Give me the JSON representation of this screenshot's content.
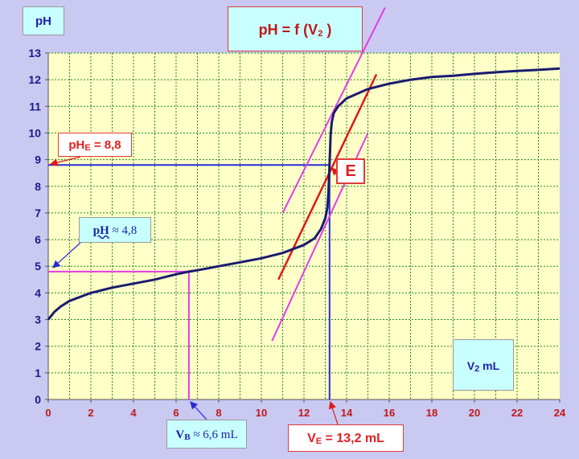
{
  "labels": {
    "y_unit": "pH",
    "title_main": "pH = f (V",
    "title_sub": "2",
    "title_end": " )",
    "phe_main": "pH",
    "phe_sub": "E",
    "phe_val": " = 8,8",
    "e_point": "E",
    "phb_main": "pH",
    "phb_val": " ≈ 4,8",
    "vb_main": "V",
    "vb_sub": "B",
    "vb_val": " ≈ 6,6 mL",
    "ve_main": "V",
    "ve_sub": "E",
    "ve_val": " = 13,2 mL",
    "x_unit_main": "V",
    "x_unit_sub": "2",
    "x_unit_end": " mL"
  },
  "colors": {
    "plot_bg": "#ffffc8",
    "grid": "#1f8a1f",
    "curve": "#1a1a70",
    "construction_blue": "#2b2bd8",
    "tangent_magenta": "#e63ae6",
    "bisector_red": "#e01818",
    "x_tick_text": "#c01818",
    "y_tick_text": "#1a1a8a"
  },
  "chart_data": {
    "type": "line",
    "xlim": [
      0,
      24
    ],
    "ylim": [
      0,
      13
    ],
    "x_ticks": [
      0,
      2,
      4,
      6,
      8,
      10,
      12,
      14,
      16,
      18,
      20,
      22,
      24
    ],
    "y_ticks": [
      0,
      1,
      2,
      3,
      4,
      5,
      6,
      7,
      8,
      9,
      10,
      11,
      12,
      13
    ],
    "grid": true,
    "series": [
      {
        "role": "curve",
        "x": [
          0,
          0.3,
          0.6,
          1,
          2,
          3,
          4,
          5,
          6,
          6.6,
          7,
          8,
          9,
          10,
          11,
          12,
          12.5,
          12.8,
          13.0,
          13.1,
          13.15,
          13.2,
          13.25,
          13.3,
          13.4,
          13.6,
          14,
          15,
          16,
          17,
          18,
          19,
          20,
          21,
          22,
          23,
          24
        ],
        "y": [
          3.0,
          3.3,
          3.5,
          3.7,
          4.0,
          4.2,
          4.35,
          4.5,
          4.7,
          4.8,
          4.85,
          5.0,
          5.15,
          5.3,
          5.5,
          5.8,
          6.05,
          6.4,
          6.8,
          7.2,
          7.8,
          8.8,
          9.9,
          10.4,
          10.75,
          11.0,
          11.3,
          11.65,
          11.85,
          12.0,
          12.1,
          12.15,
          12.22,
          12.28,
          12.33,
          12.37,
          12.42
        ]
      },
      {
        "role": "tangent",
        "x": [
          11.0,
          15.8
        ],
        "y": [
          7.0,
          14.7
        ]
      },
      {
        "role": "tangent",
        "x": [
          10.5,
          15.0
        ],
        "y": [
          2.2,
          10.0
        ]
      },
      {
        "role": "bisector",
        "x": [
          10.8,
          15.4
        ],
        "y": [
          4.5,
          12.2
        ]
      }
    ],
    "markers": {
      "v_b": 6.6,
      "ph_b": 4.8,
      "v_e": 13.2,
      "ph_e": 8.8
    }
  }
}
